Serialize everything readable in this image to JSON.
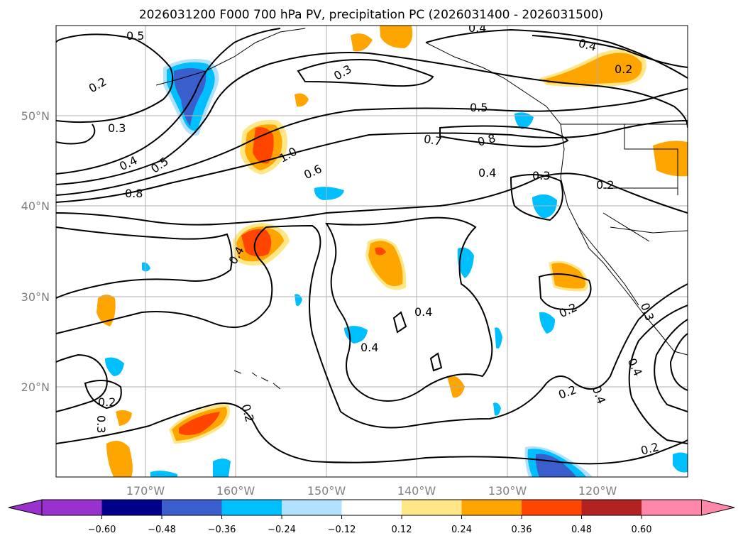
{
  "title": "2026031200 F000 700 hPa PV, precipitation PC (2026031400 - 2026031500)",
  "map": {
    "lat_ticks": [
      "50°N",
      "40°N",
      "30°N",
      "20°N"
    ],
    "lon_ticks": [
      "170°W",
      "160°W",
      "150°W",
      "140°W",
      "130°W",
      "120°W"
    ],
    "grid": true
  },
  "contour_labels": [
    "0.5",
    "0.2",
    "0.3",
    "0.4",
    "0.5",
    "0.8",
    "1.0",
    "0.6",
    "0.4",
    "0.3",
    "0.5",
    "0.7",
    "0.8",
    "0.4",
    "0.3",
    "0.2",
    "0.4",
    "0.2",
    "0.4",
    "0.4",
    "0.4",
    "0.2",
    "0.3",
    "0.2",
    "0.2",
    "0.3",
    "0.4",
    "0.2",
    "0.4",
    "0.2"
  ],
  "colorbar": {
    "ticks": [
      "−0.60",
      "−0.48",
      "−0.36",
      "−0.24",
      "−0.12",
      "0.12",
      "0.24",
      "0.36",
      "0.48",
      "0.60"
    ],
    "colors": {
      "under": "#9932cc",
      "b1": "#00008b",
      "b2": "#3a5fcd",
      "b3": "#00bfff",
      "b4": "#b0e2ff",
      "b5": "#ffffff",
      "b6": "#ffe787",
      "b7": "#ffa500",
      "b8": "#ff4500",
      "b9": "#b22222",
      "over": "#ff88aa"
    }
  }
}
